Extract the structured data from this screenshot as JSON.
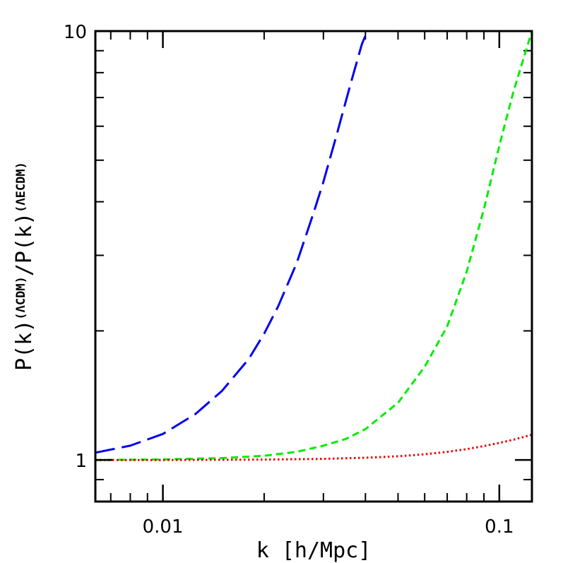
{
  "chart_data": {
    "type": "line",
    "title": "",
    "xlabel": "k [h/Mpc]",
    "ylabel": {
      "parts": [
        {
          "text": "P(k)",
          "sup": false
        },
        {
          "text": "(ΛCDM)",
          "sup": true
        },
        {
          "text": "/P(k)",
          "sup": false
        },
        {
          "text": "(ΛECDM)",
          "sup": true
        }
      ]
    },
    "xscale": "log",
    "yscale": "log",
    "xlim": [
      0.0063,
      0.125
    ],
    "ylim": [
      0.8,
      10
    ],
    "xticks": [
      {
        "value": 0.01,
        "label": "0.01"
      },
      {
        "value": 0.1,
        "label": "0.1"
      }
    ],
    "yticks": [
      {
        "value": 1,
        "label": "1"
      },
      {
        "value": 10,
        "label": "10"
      }
    ],
    "grid": false,
    "legend": "none",
    "series": [
      {
        "color": "#0000ee",
        "style": "long-dash",
        "x": [
          0.0063,
          0.008,
          0.01,
          0.0125,
          0.015,
          0.018,
          0.02,
          0.022,
          0.025,
          0.028,
          0.03,
          0.033,
          0.036,
          0.039,
          0.0405
        ],
        "y": [
          1.04,
          1.08,
          1.15,
          1.28,
          1.45,
          1.72,
          1.97,
          2.28,
          2.88,
          3.75,
          4.45,
          5.8,
          7.45,
          9.3,
          10.0
        ]
      },
      {
        "color": "#00ee00",
        "style": "short-dash",
        "x": [
          0.0063,
          0.01,
          0.015,
          0.02,
          0.025,
          0.03,
          0.035,
          0.04,
          0.05,
          0.06,
          0.07,
          0.08,
          0.09,
          0.1,
          0.11,
          0.125
        ],
        "y": [
          1.0,
          1.003,
          1.01,
          1.023,
          1.045,
          1.08,
          1.12,
          1.18,
          1.36,
          1.65,
          2.05,
          2.75,
          3.85,
          5.4,
          7.2,
          10.0
        ]
      },
      {
        "color": "#ee0000",
        "style": "dotted",
        "x": [
          0.0063,
          0.01,
          0.02,
          0.03,
          0.04,
          0.05,
          0.06,
          0.07,
          0.08,
          0.09,
          0.1,
          0.11,
          0.125
        ],
        "y": [
          1.0,
          1.0,
          1.002,
          1.006,
          1.012,
          1.02,
          1.031,
          1.045,
          1.06,
          1.078,
          1.096,
          1.115,
          1.145
        ]
      }
    ]
  }
}
